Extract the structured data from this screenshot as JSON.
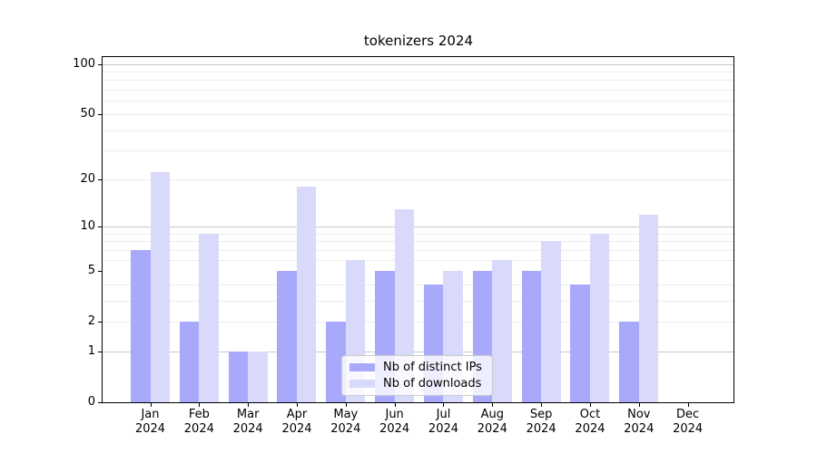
{
  "title": "tokenizers 2024",
  "legend": {
    "items": [
      {
        "label": "Nb of distinct IPs"
      },
      {
        "label": "Nb of downloads"
      }
    ]
  },
  "chart_data": {
    "type": "bar",
    "title": "tokenizers 2024",
    "categories": [
      "Jan 2024",
      "Feb 2024",
      "Mar 2024",
      "Apr 2024",
      "May 2024",
      "Jun 2024",
      "Jul 2024",
      "Aug 2024",
      "Sep 2024",
      "Oct 2024",
      "Nov 2024",
      "Dec 2024"
    ],
    "series": [
      {
        "name": "Nb of distinct IPs",
        "color": "#a9a9fb",
        "values": [
          7,
          2,
          1,
          5,
          2,
          5,
          4,
          5,
          5,
          4,
          2,
          0
        ]
      },
      {
        "name": "Nb of downloads",
        "color": "#d9d9fb",
        "values": [
          22,
          9,
          1,
          18,
          6,
          13,
          5,
          6,
          8,
          9,
          12,
          0
        ]
      }
    ],
    "xlabel": "",
    "ylabel": "",
    "y_scale": "log1p",
    "ylim": [
      0,
      110
    ],
    "y_ticks": [
      100,
      50,
      20,
      10,
      5,
      2,
      1,
      0
    ],
    "y_minor_ticks": [
      2,
      3,
      4,
      6,
      7,
      8,
      9,
      20,
      30,
      40,
      50,
      60,
      70,
      80,
      90
    ],
    "grid": true,
    "legend_position": "lower center"
  }
}
